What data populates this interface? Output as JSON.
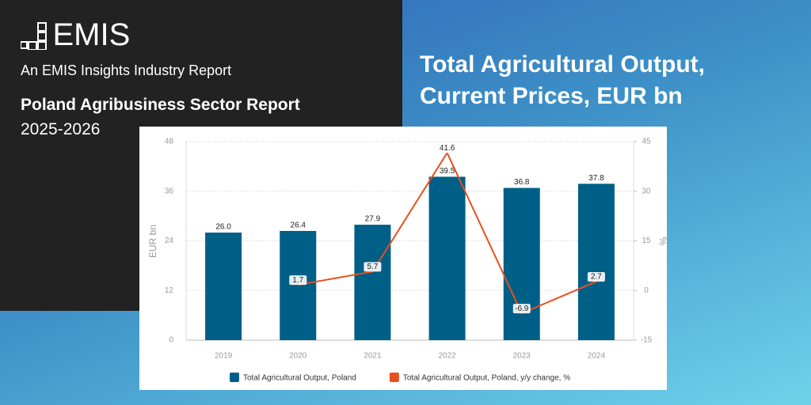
{
  "brand": {
    "logo": "EMIS",
    "tagline": "An EMIS Insights Industry Report",
    "report_title": "Poland Agribusiness Sector Report",
    "years": "2025-2026"
  },
  "chart_data": {
    "type": "bar",
    "title": "Total Agricultural Output, Current Prices, EUR bn",
    "categories": [
      "2019",
      "2020",
      "2021",
      "2022",
      "2023",
      "2024"
    ],
    "series": [
      {
        "name": "Total Agricultural Output, Poland",
        "type": "bar",
        "color": "#005f87",
        "values": [
          26.0,
          26.4,
          27.9,
          39.5,
          36.8,
          37.8
        ],
        "value_labels": [
          "26.0",
          "26.4",
          "27.9",
          "39.5",
          "36.8",
          "37.8"
        ]
      },
      {
        "name": "Total Agricultural Output, Poland, y/y change, %",
        "type": "line",
        "axis": "y2",
        "color": "#e8501e",
        "values": [
          null,
          1.7,
          5.7,
          41.6,
          -6.9,
          2.7
        ]
      }
    ],
    "ylabel": "EUR bn",
    "y2label": "%",
    "ylim": [
      0,
      48
    ],
    "yticks": [
      0,
      12,
      24,
      36,
      48
    ],
    "y2lim": [
      -15,
      45
    ],
    "y2ticks": [
      -15,
      0,
      15,
      30,
      45
    ],
    "grid": true
  }
}
